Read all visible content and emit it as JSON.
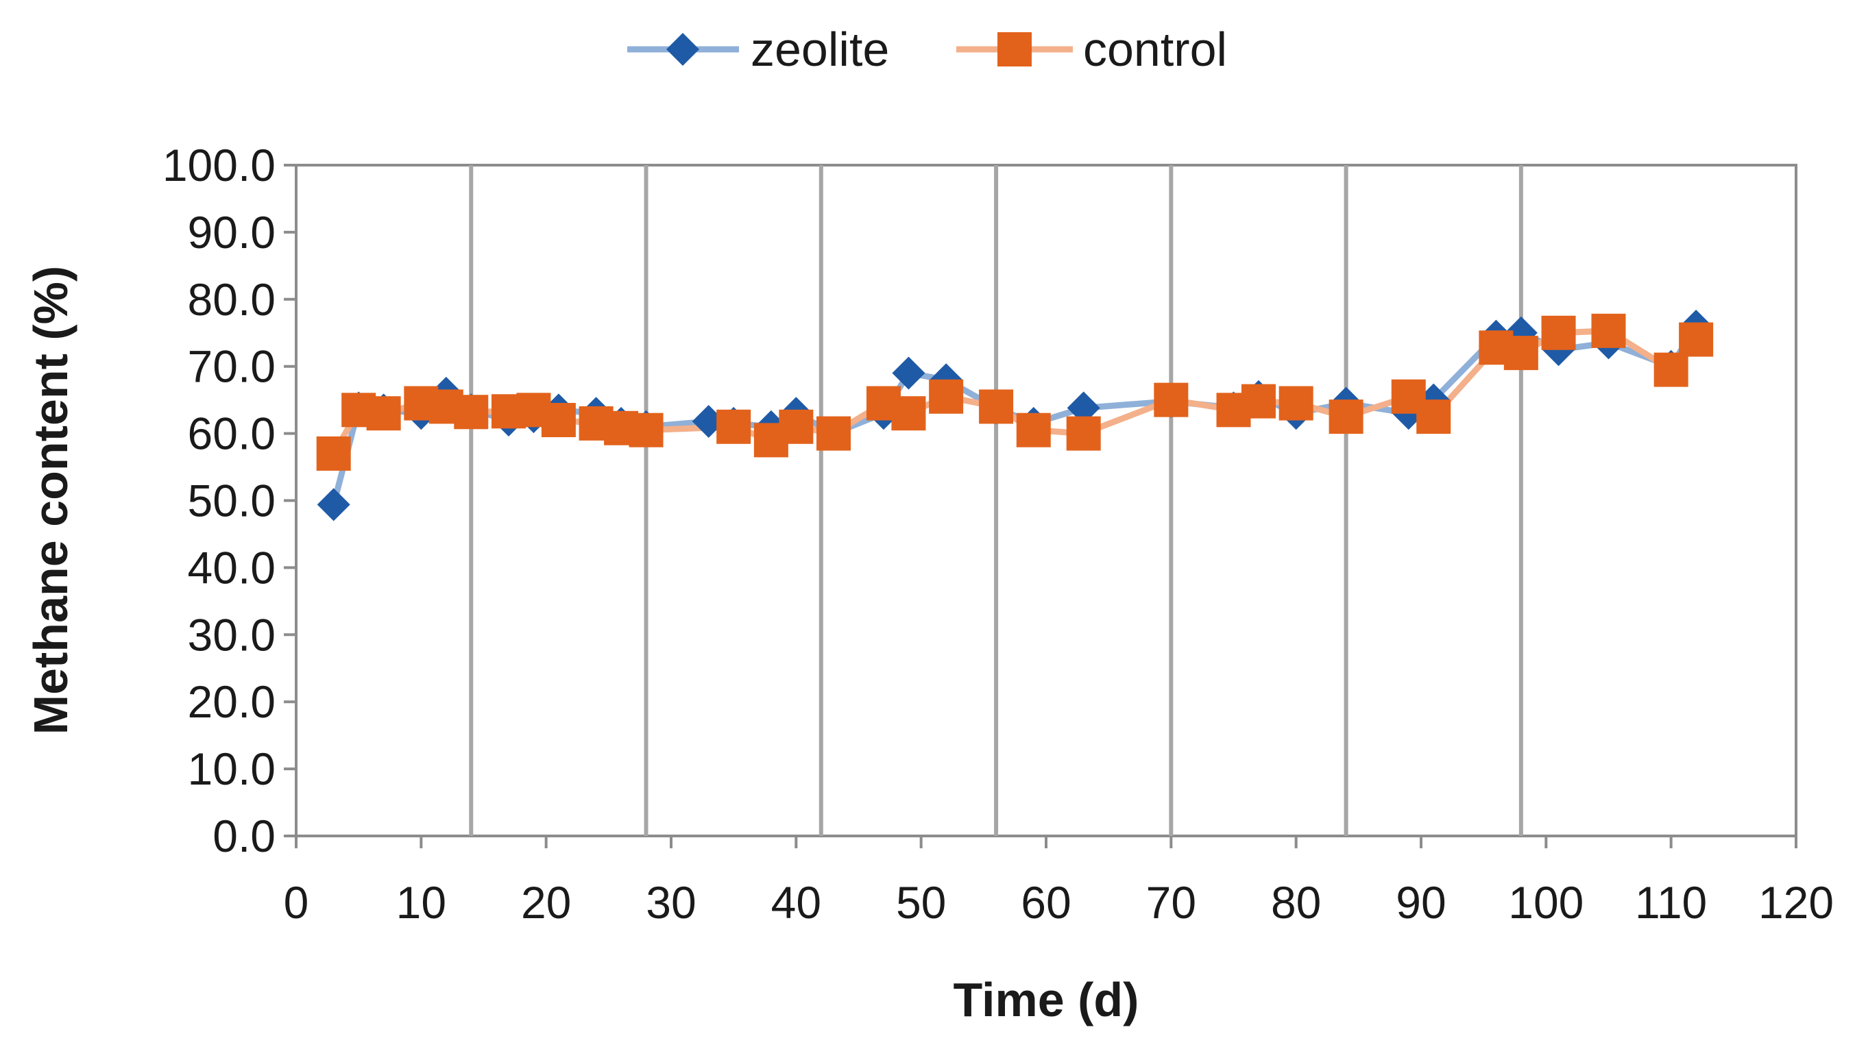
{
  "chart_data": {
    "type": "line",
    "title": "",
    "xlabel": "Time (d)",
    "ylabel": "Methane content (%)",
    "xlim": [
      0,
      120
    ],
    "ylim": [
      0,
      100
    ],
    "x_ticks": [
      "0",
      "10",
      "20",
      "30",
      "40",
      "50",
      "60",
      "70",
      "80",
      "90",
      "100",
      "110",
      "120"
    ],
    "y_ticks": [
      "0.0",
      "10.0",
      "20.0",
      "30.0",
      "40.0",
      "50.0",
      "60.0",
      "70.0",
      "80.0",
      "90.0",
      "100.0"
    ],
    "vertical_markers": [
      14,
      28,
      42,
      56,
      70,
      84,
      98
    ],
    "legend_position": "top-center",
    "series": [
      {
        "name": "zeolite",
        "color": "#1f5aa6",
        "line_color": "#8fb0d8",
        "marker": "diamond",
        "x": [
          3,
          5,
          7,
          10,
          12,
          14,
          17,
          19,
          21,
          24,
          26,
          28,
          33,
          35,
          38,
          40,
          43,
          47,
          49,
          52,
          56,
          59,
          63,
          70,
          75,
          77,
          80,
          84,
          89,
          91,
          96,
          98,
          101,
          105,
          110,
          112
        ],
        "y": [
          49.4,
          63.8,
          63.5,
          63.0,
          66.0,
          63.5,
          62.0,
          62.5,
          63.5,
          63.0,
          61.5,
          61.0,
          61.8,
          61.5,
          61.0,
          63.0,
          60.0,
          63.0,
          69.0,
          68.0,
          63.8,
          61.5,
          63.8,
          64.8,
          63.8,
          65.5,
          63.0,
          64.5,
          63.0,
          65.0,
          74.5,
          75.0,
          72.5,
          73.5,
          70.0,
          76.0
        ]
      },
      {
        "name": "control",
        "color": "#e2621b",
        "line_color": "#f3b08a",
        "marker": "square",
        "x": [
          3,
          5,
          7,
          10,
          12,
          14,
          17,
          19,
          21,
          24,
          26,
          28,
          35,
          38,
          40,
          43,
          47,
          49,
          52,
          56,
          59,
          63,
          70,
          75,
          77,
          80,
          84,
          89,
          91,
          96,
          98,
          101,
          105,
          110,
          112
        ],
        "y": [
          57.0,
          63.5,
          63.0,
          64.5,
          64.0,
          63.2,
          63.3,
          63.5,
          62.0,
          61.5,
          60.8,
          60.5,
          61.0,
          59.0,
          61.0,
          60.0,
          64.5,
          63.0,
          65.5,
          64.0,
          60.5,
          60.0,
          65.0,
          63.5,
          64.8,
          64.5,
          62.5,
          65.5,
          62.5,
          72.8,
          72.0,
          75.0,
          75.3,
          69.5,
          74.0
        ]
      }
    ]
  }
}
